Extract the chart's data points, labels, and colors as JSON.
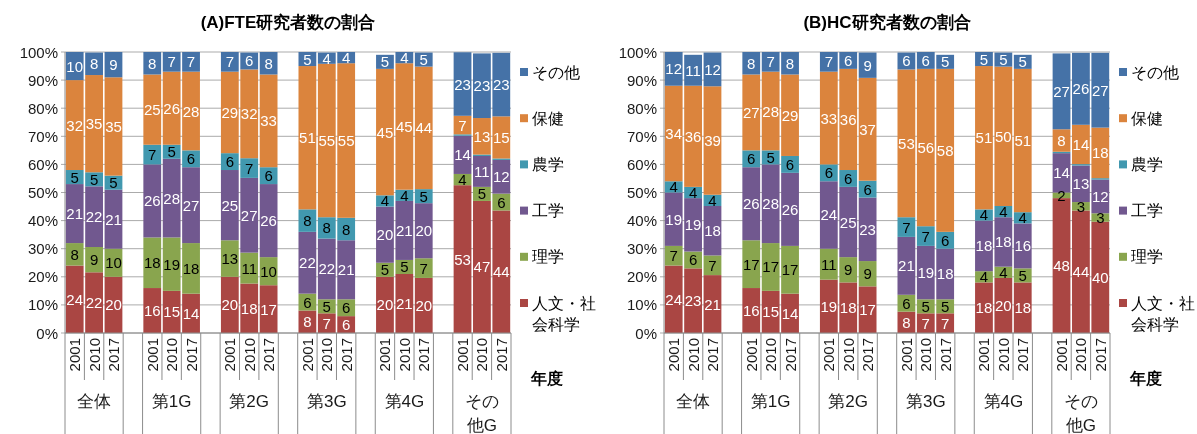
{
  "chart_data": [
    {
      "type": "bar",
      "stacked": true,
      "title": "(A)FTE研究者数の割合",
      "xlabel": "年度",
      "legend": "right",
      "grid": "y",
      "categories": [
        "2001",
        "2010",
        "2017",
        null,
        "2001",
        "2010",
        "2017",
        null,
        "2001",
        "2010",
        "2017",
        null,
        "2001",
        "2010",
        "2017",
        null,
        "2001",
        "2010",
        "2017",
        null,
        "2001",
        "2010",
        "2017"
      ],
      "annotations": [
        "全体",
        "第1G",
        "第2G",
        "第3G",
        "第4G",
        "その他G"
      ],
      "ylim": [
        0,
        100
      ],
      "yticks": [
        {
          "value": 0,
          "label": "0%"
        },
        {
          "value": 10,
          "label": "10%"
        },
        {
          "value": 20,
          "label": "20%"
        },
        {
          "value": 30,
          "label": "30%"
        },
        {
          "value": 40,
          "label": "40%"
        },
        {
          "value": 50,
          "label": "50%"
        },
        {
          "value": 60,
          "label": "60%"
        },
        {
          "value": 70,
          "label": "70%"
        },
        {
          "value": 80,
          "label": "80%"
        },
        {
          "value": 90,
          "label": "90%"
        },
        {
          "value": 100,
          "label": "100%"
        }
      ],
      "series": [
        {
          "name": "人文・社会科学",
          "color": "#aa4643",
          "values": [
            24,
            21.6,
            20,
            null,
            16,
            15,
            14,
            null,
            20,
            17.6,
            17,
            null,
            8,
            7,
            6,
            null,
            20,
            21,
            19.6,
            null,
            52.6,
            47,
            43.6
          ],
          "value_labels": [
            "24",
            "22",
            "20",
            null,
            "16",
            "15",
            "14",
            null,
            "20",
            "18",
            "17",
            null,
            "8",
            "7",
            "6",
            null,
            "20",
            "21",
            "20",
            null,
            "53",
            "47",
            "44"
          ]
        },
        {
          "name": "理学",
          "color": "#89a54e",
          "values": [
            8,
            9,
            10,
            null,
            18,
            19,
            18,
            null,
            13,
            11,
            10,
            null,
            6,
            5,
            6,
            null,
            5,
            5,
            7,
            null,
            4,
            5,
            6
          ],
          "value_labels": [
            "8",
            "9",
            "10",
            null,
            "18",
            "19",
            "18",
            null,
            "13",
            "11",
            "10",
            null,
            "6",
            "5",
            "6",
            null,
            "5",
            "5",
            "7",
            null,
            "4",
            "5",
            "6"
          ]
        },
        {
          "name": "工学",
          "color": "#71588f",
          "values": [
            21,
            21.6,
            21,
            null,
            26,
            28,
            27,
            null,
            25,
            26.6,
            26,
            null,
            22,
            21.6,
            21,
            null,
            20,
            21,
            19.6,
            null,
            13.6,
            11,
            12
          ],
          "value_labels": [
            "21",
            "22",
            "21",
            null,
            "26",
            "28",
            "27",
            null,
            "25",
            "27",
            "26",
            null,
            "22",
            "22",
            "21",
            null,
            "20",
            "21",
            "20",
            null,
            "14",
            "11",
            "12"
          ]
        },
        {
          "name": "農学",
          "color": "#4198af",
          "values": [
            5,
            5,
            5,
            null,
            7,
            5,
            6,
            null,
            6,
            7,
            6,
            null,
            8,
            7.6,
            8,
            null,
            4,
            4,
            5,
            null,
            0.5,
            0.5,
            0.5
          ],
          "value_labels": [
            "5",
            "5",
            "5",
            null,
            "7",
            "5",
            "6",
            null,
            "6",
            "7",
            "6",
            null,
            "8",
            "8",
            "8",
            null,
            "4",
            "4",
            "5",
            null,
            null,
            null,
            null
          ]
        },
        {
          "name": "保健",
          "color": "#db843d",
          "values": [
            32,
            34.6,
            35,
            null,
            25,
            26,
            28,
            null,
            29,
            31.6,
            33,
            null,
            51,
            54.6,
            55,
            null,
            45,
            45,
            43.6,
            null,
            6.6,
            13,
            15
          ],
          "value_labels": [
            "32",
            "35",
            "35",
            null,
            "25",
            "26",
            "28",
            null,
            "29",
            "32",
            "33",
            null,
            "51",
            "55",
            "55",
            null,
            "45",
            "45",
            "44",
            null,
            "7",
            "13",
            "15"
          ]
        },
        {
          "name": "その他",
          "color": "#4572a7",
          "values": [
            10,
            8,
            9,
            null,
            8,
            7,
            7,
            null,
            7,
            6,
            8,
            null,
            5,
            4,
            4,
            null,
            5,
            4,
            5,
            null,
            22.6,
            23,
            22.6
          ],
          "value_labels": [
            "10",
            "8",
            "9",
            null,
            "8",
            "7",
            "7",
            null,
            "7",
            "6",
            "8",
            null,
            "5",
            "4",
            "4",
            null,
            "5",
            "4",
            "5",
            null,
            "23",
            "23",
            "23"
          ]
        }
      ]
    },
    {
      "type": "bar",
      "stacked": true,
      "title": "(B)HC研究者数の割合",
      "xlabel": "年度",
      "legend": "right",
      "grid": "y",
      "categories": [
        "2001",
        "2010",
        "2017",
        null,
        "2001",
        "2010",
        "2017",
        null,
        "2001",
        "2010",
        "2017",
        null,
        "2001",
        "2010",
        "2017",
        null,
        "2001",
        "2010",
        "2017",
        null,
        "2001",
        "2010",
        "2017"
      ],
      "annotations": [
        "全体",
        "第1G",
        "第2G",
        "第3G",
        "第4G",
        "その他G"
      ],
      "ylim": [
        0,
        100
      ],
      "yticks": [
        {
          "value": 0,
          "label": "0%"
        },
        {
          "value": 10,
          "label": "10%"
        },
        {
          "value": 20,
          "label": "20%"
        },
        {
          "value": 30,
          "label": "30%"
        },
        {
          "value": 40,
          "label": "40%"
        },
        {
          "value": 50,
          "label": "50%"
        },
        {
          "value": 60,
          "label": "60%"
        },
        {
          "value": 70,
          "label": "70%"
        },
        {
          "value": 80,
          "label": "80%"
        },
        {
          "value": 90,
          "label": "90%"
        },
        {
          "value": 100,
          "label": "100%"
        }
      ],
      "series": [
        {
          "name": "人文・社会科学",
          "color": "#aa4643",
          "values": [
            24,
            23,
            20.6,
            null,
            16,
            15,
            14,
            null,
            19,
            18,
            16.6,
            null,
            7.6,
            7,
            7,
            null,
            18,
            19.6,
            18,
            null,
            48,
            43.6,
            39.6
          ],
          "value_labels": [
            "24",
            "23",
            "21",
            null,
            "16",
            "15",
            "14",
            null,
            "19",
            "18",
            "17",
            null,
            "8",
            "7",
            "7",
            null,
            "18",
            "20",
            "18",
            null,
            "48",
            "44",
            "40"
          ]
        },
        {
          "name": "理学",
          "color": "#89a54e",
          "values": [
            7,
            6,
            7,
            null,
            17,
            17,
            17,
            null,
            11,
            9,
            9,
            null,
            6,
            5,
            5,
            null,
            4,
            4,
            5,
            null,
            2,
            3,
            3
          ],
          "value_labels": [
            "7",
            "6",
            "7",
            null,
            "17",
            "17",
            "17",
            null,
            "11",
            "9",
            "9",
            null,
            "6",
            "5",
            "5",
            null,
            "4",
            "4",
            "5",
            null,
            "2",
            "3",
            "3"
          ]
        },
        {
          "name": "工学",
          "color": "#71588f",
          "values": [
            19,
            19,
            17.6,
            null,
            26,
            28,
            26,
            null,
            24,
            25,
            22.6,
            null,
            20.6,
            19,
            18,
            null,
            18,
            17.6,
            16,
            null,
            14,
            13,
            12
          ],
          "value_labels": [
            "19",
            "19",
            "18",
            null,
            "26",
            "28",
            "26",
            null,
            "24",
            "25",
            "23",
            null,
            "21",
            "19",
            "18",
            null,
            "18",
            "18",
            "16",
            null,
            "14",
            "13",
            "12"
          ]
        },
        {
          "name": "農学",
          "color": "#4198af",
          "values": [
            4,
            4,
            4,
            null,
            6,
            5,
            6,
            null,
            6,
            6,
            6,
            null,
            7,
            7,
            6,
            null,
            4,
            4,
            4,
            null,
            0.5,
            0.5,
            0.5
          ],
          "value_labels": [
            "4",
            "4",
            "4",
            null,
            "6",
            "5",
            "6",
            null,
            "6",
            "6",
            "6",
            null,
            "7",
            "7",
            "6",
            null,
            "4",
            "4",
            "4",
            null,
            null,
            null,
            null
          ]
        },
        {
          "name": "保健",
          "color": "#db843d",
          "values": [
            34,
            36,
            38.6,
            null,
            27,
            28,
            29,
            null,
            33,
            36,
            36.6,
            null,
            52.6,
            56,
            58,
            null,
            51,
            49.6,
            51,
            null,
            8,
            14,
            18
          ],
          "value_labels": [
            "34",
            "36",
            "39",
            null,
            "27",
            "28",
            "29",
            null,
            "33",
            "36",
            "37",
            null,
            "53",
            "56",
            "58",
            null,
            "51",
            "50",
            "51",
            null,
            "8",
            "14",
            "18"
          ]
        },
        {
          "name": "その他",
          "color": "#4572a7",
          "values": [
            12,
            11,
            12,
            null,
            8,
            7,
            8,
            null,
            7,
            6,
            9,
            null,
            6,
            6,
            5,
            null,
            5,
            5,
            5,
            null,
            27,
            25.6,
            26.6
          ],
          "value_labels": [
            "12",
            "11",
            "12",
            null,
            "8",
            "7",
            "8",
            null,
            "7",
            "6",
            "9",
            null,
            "6",
            "6",
            "5",
            null,
            "5",
            "5",
            "5",
            null,
            "27",
            "26",
            "27"
          ]
        }
      ]
    }
  ]
}
